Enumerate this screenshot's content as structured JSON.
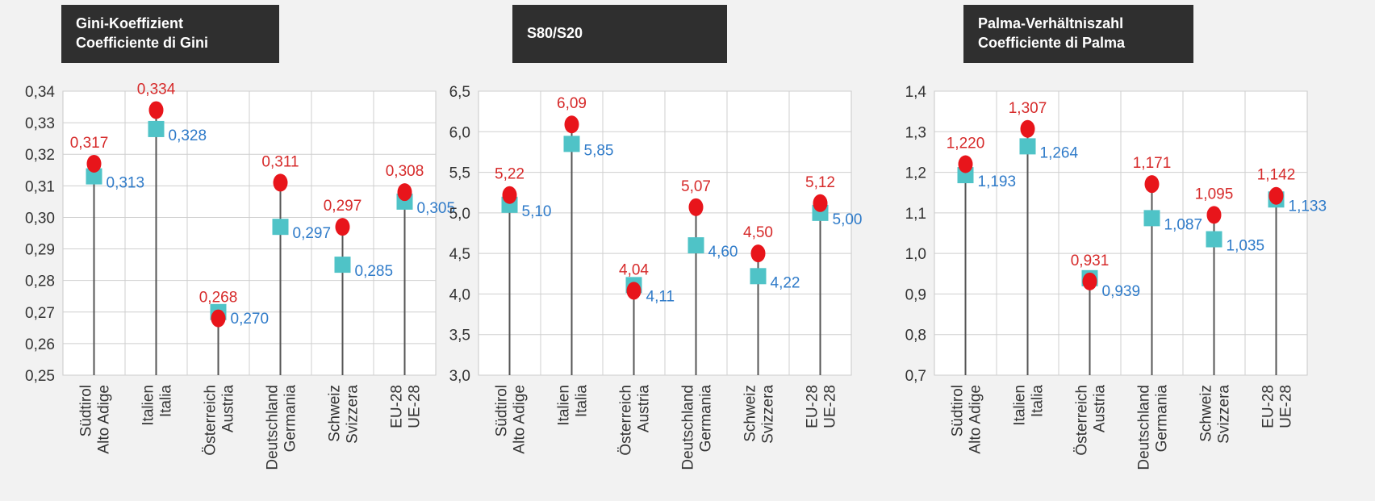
{
  "chart_data": [
    {
      "type": "dot-stem",
      "title": [
        "Gini-Koeffizient",
        "Coefficiente di Gini"
      ],
      "ylim": [
        0.25,
        0.34
      ],
      "yticks": [
        "0,25",
        "0,26",
        "0,27",
        "0,28",
        "0,29",
        "0,30",
        "0,31",
        "0,32",
        "0,33",
        "0,34"
      ],
      "categories": [
        [
          "Südtirol",
          "Alto Adige"
        ],
        [
          "Italien",
          "Italia"
        ],
        [
          "Österreich",
          "Austria"
        ],
        [
          "Deutschland",
          "Germania"
        ],
        [
          "Schweiz",
          "Svizzera"
        ],
        [
          "EU-28",
          "UE-28"
        ]
      ],
      "series": [
        {
          "marker": "circle",
          "color": "#e8151b",
          "label_color": "#d62a2a",
          "values": [
            0.317,
            0.334,
            0.268,
            0.311,
            0.297,
            0.308
          ],
          "labels": [
            "0,317",
            "0,334",
            "0,268",
            "0,311",
            "0,297",
            "0,308"
          ]
        },
        {
          "marker": "square",
          "color": "#4fc3c7",
          "label_color": "#2f7bc9",
          "values": [
            0.313,
            0.328,
            0.27,
            0.297,
            0.285,
            0.305
          ],
          "labels": [
            "0,313",
            "0,328",
            "0,270",
            "0,297",
            "0,285",
            "0,305"
          ]
        }
      ],
      "grid": true
    },
    {
      "type": "dot-stem",
      "title": [
        "S80/S20"
      ],
      "ylim": [
        3.0,
        6.5
      ],
      "yticks": [
        "3,0",
        "3,5",
        "4,0",
        "4,5",
        "5,0",
        "5,5",
        "6,0",
        "6,5"
      ],
      "categories": [
        [
          "Südtirol",
          "Alto Adige"
        ],
        [
          "Italien",
          "Italia"
        ],
        [
          "Österreich",
          "Austria"
        ],
        [
          "Deutschland",
          "Germania"
        ],
        [
          "Schweiz",
          "Svizzera"
        ],
        [
          "EU-28",
          "UE-28"
        ]
      ],
      "series": [
        {
          "marker": "circle",
          "color": "#e8151b",
          "label_color": "#d62a2a",
          "values": [
            5.22,
            6.09,
            4.04,
            5.07,
            4.5,
            5.12
          ],
          "labels": [
            "5,22",
            "6,09",
            "4,04",
            "5,07",
            "4,50",
            "5,12"
          ]
        },
        {
          "marker": "square",
          "color": "#4fc3c7",
          "label_color": "#2f7bc9",
          "values": [
            5.1,
            5.85,
            4.11,
            4.6,
            4.22,
            5.0
          ],
          "labels": [
            "5,10",
            "5,85",
            "4,11",
            "4,60",
            "4,22",
            "5,00"
          ]
        }
      ],
      "grid": true
    },
    {
      "type": "dot-stem",
      "title": [
        "Palma-Verhältniszahl",
        "Coefficiente di Palma"
      ],
      "ylim": [
        0.7,
        1.4
      ],
      "yticks": [
        "0,7",
        "0,8",
        "0,9",
        "1,0",
        "1,1",
        "1,2",
        "1,3",
        "1,4"
      ],
      "categories": [
        [
          "Südtirol",
          "Alto Adige"
        ],
        [
          "Italien",
          "Italia"
        ],
        [
          "Österreich",
          "Austria"
        ],
        [
          "Deutschland",
          "Germania"
        ],
        [
          "Schweiz",
          "Svizzera"
        ],
        [
          "EU-28",
          "UE-28"
        ]
      ],
      "series": [
        {
          "marker": "circle",
          "color": "#e8151b",
          "label_color": "#d62a2a",
          "values": [
            1.22,
            1.307,
            0.931,
            1.171,
            1.095,
            1.142
          ],
          "labels": [
            "1,220",
            "1,307",
            "0,931",
            "1,171",
            "1,095",
            "1,142"
          ]
        },
        {
          "marker": "square",
          "color": "#4fc3c7",
          "label_color": "#2f7bc9",
          "values": [
            1.193,
            1.264,
            0.939,
            1.087,
            1.035,
            1.133
          ],
          "labels": [
            "1,193",
            "1,264",
            "0,939",
            "1,087",
            "1,035",
            "1,133"
          ]
        }
      ],
      "grid": true
    }
  ]
}
